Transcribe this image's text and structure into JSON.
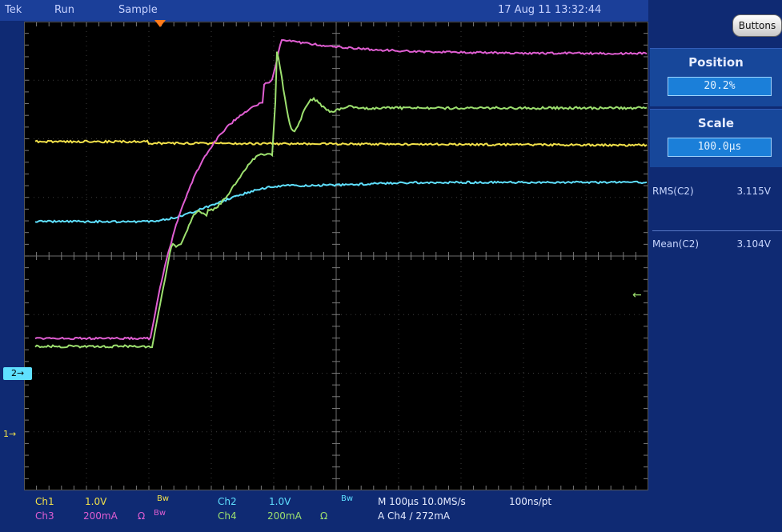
{
  "menubar": {
    "brand": "Tek",
    "run_state": "Run",
    "acq_mode": "Sample",
    "datetime": "17 Aug 11 13:32:44"
  },
  "panel": {
    "buttons_label": "Buttons",
    "position": {
      "title": "Position",
      "value": "20.2%"
    },
    "scale": {
      "title": "Scale",
      "value": "100.0µs"
    }
  },
  "measurements": [
    {
      "label": "RMS(C2)",
      "value": "3.115V"
    },
    {
      "label": "Mean(C2)",
      "value": "3.104V"
    }
  ],
  "markers": {
    "ch2": "2",
    "ch1": "1",
    "ch2_arrow": "→",
    "ch1_arrow": "→",
    "trigger_level": "←"
  },
  "status": {
    "ch1": {
      "name": "Ch1",
      "scale": "1.0V",
      "bw": "Bw"
    },
    "ch2": {
      "name": "Ch2",
      "scale": "1.0V",
      "bw": "Bw"
    },
    "ch3": {
      "name": "Ch3",
      "scale": "200mA",
      "ohm": "Ω",
      "bw": "Bw"
    },
    "ch4": {
      "name": "Ch4",
      "scale": "200mA",
      "ohm": "Ω"
    },
    "timebase": "M 100µs 10.0MS/s",
    "resolution": "100ns/pt",
    "trigger": "A  Ch4  ∕  272mA"
  },
  "colors": {
    "ch1": "#f2e14a",
    "ch2": "#5fe0ff",
    "ch3": "#e05ed2",
    "ch4": "#9de06f",
    "screen": "#000000",
    "frame": "#0f2a73"
  },
  "icons": {
    "position_marker": "trigger-position-triangle",
    "trigger_level": "arrow-left-icon"
  }
}
